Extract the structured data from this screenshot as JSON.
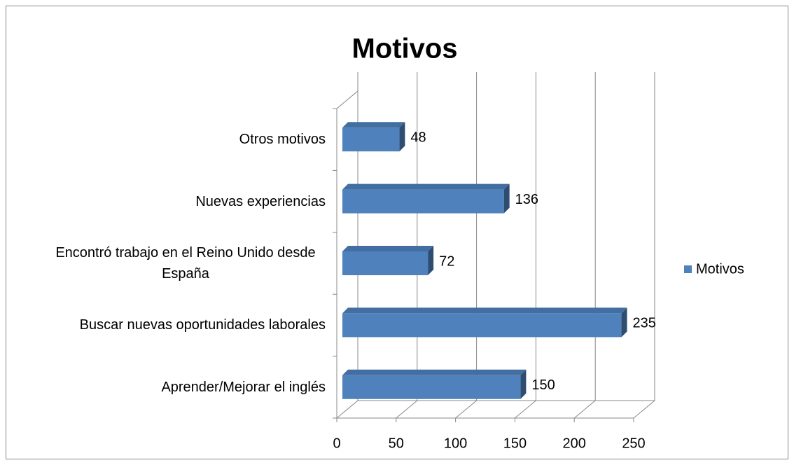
{
  "chart_data": {
    "type": "bar",
    "orientation": "horizontal",
    "title": "Motivos",
    "categories": [
      "Otros motivos",
      "Nuevas experiencias",
      "Encontró trabajo en el Reino Unido desde España",
      "Buscar nuevas oportunidades laborales",
      "Aprender/Mejorar el inglés"
    ],
    "series": [
      {
        "name": "Motivos",
        "color": "#4f81bd",
        "values": [
          48,
          136,
          72,
          235,
          150
        ]
      }
    ],
    "xlim": [
      0,
      250
    ],
    "xticks": [
      0,
      50,
      100,
      150,
      200,
      250
    ],
    "grid": true,
    "legend": "right"
  }
}
